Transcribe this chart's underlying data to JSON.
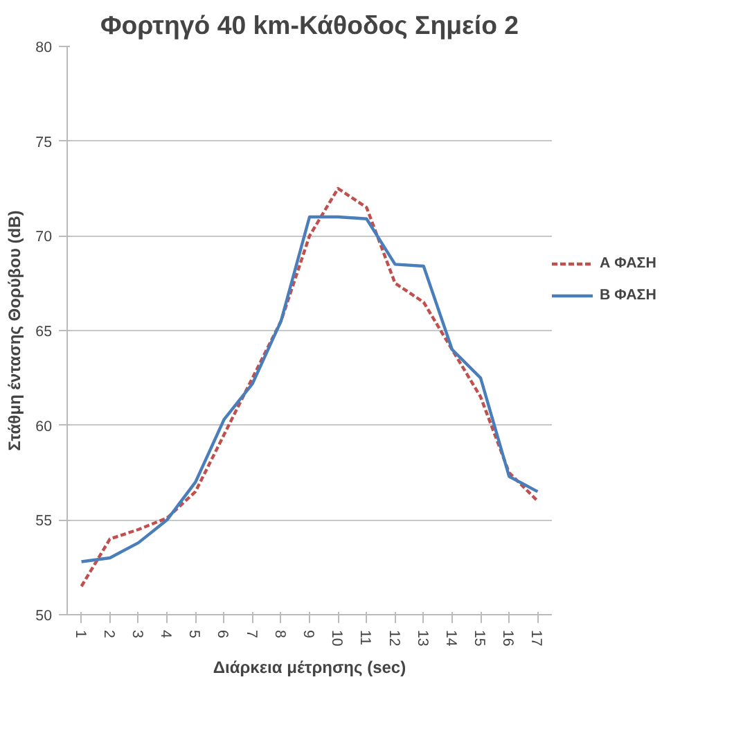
{
  "chart_data": {
    "type": "line",
    "title": "Φορτηγό 40 km-Κάθοδος Σημείο 2",
    "xlabel": "Διάρκεια μέτρησης (sec)",
    "ylabel": "Στάθμη έντασης Θορύβου (dB)",
    "categories": [
      "1",
      "2",
      "3",
      "4",
      "5",
      "6",
      "7",
      "8",
      "9",
      "10",
      "11",
      "12",
      "13",
      "14",
      "15",
      "16",
      "17"
    ],
    "series": [
      {
        "name": "Α ΦΑΣΗ",
        "color": "#c0504d",
        "line_style": "dashed",
        "values": [
          51.5,
          54.0,
          54.5,
          55.1,
          56.5,
          59.5,
          62.5,
          65.5,
          70.0,
          72.5,
          71.5,
          67.5,
          66.5,
          64.0,
          61.5,
          57.5,
          56.0
        ]
      },
      {
        "name": "Β ΦΑΣΗ",
        "color": "#4a7ebb",
        "line_style": "solid",
        "values": [
          52.8,
          53.0,
          53.8,
          55.0,
          57.0,
          60.3,
          62.2,
          65.5,
          71.0,
          71.0,
          70.9,
          68.5,
          68.4,
          64.0,
          62.5,
          57.3,
          56.5
        ]
      }
    ],
    "ylim": [
      50,
      80
    ],
    "yticks": [
      50,
      55,
      60,
      65,
      70,
      75,
      80
    ],
    "grid": "y",
    "legend": "right",
    "marker": "none"
  }
}
